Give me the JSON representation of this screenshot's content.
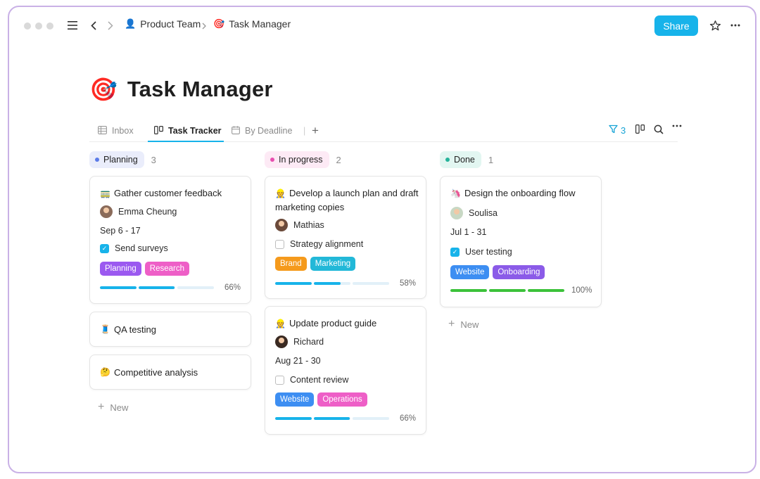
{
  "breadcrumb": [
    {
      "label": "Product Team",
      "emoji": "👤"
    },
    {
      "label": "Task Manager",
      "emoji": "🎯"
    }
  ],
  "toolbar": {
    "share_label": "Share"
  },
  "page": {
    "title": "Task Manager",
    "emoji": "🎯"
  },
  "tabs": [
    {
      "label": "Inbox",
      "icon": "table-icon"
    },
    {
      "label": "Task Tracker",
      "icon": "board-icon"
    },
    {
      "label": "By Deadline",
      "icon": "calendar-icon"
    }
  ],
  "view_tools": {
    "filter_count": "3"
  },
  "colors": {
    "accent": "#17b3ea",
    "planning_bg": "#eaedfb",
    "planning_dot": "#5b7be8",
    "in_progress_bg": "#fdeaf5",
    "in_progress_dot": "#e84fb0",
    "done_bg": "#e2f6f1",
    "done_dot": "#24b39a",
    "tag_planning": "#9b59f0",
    "tag_research": "#ee5fc7",
    "tag_brand": "#f59a1c",
    "tag_marketing": "#22b8d8",
    "tag_website": "#3d8ef2",
    "tag_operations": "#ee5fc7",
    "tag_onboarding": "#8b5be8",
    "progress_blue": "#17b3ea",
    "progress_green": "#3cc23a"
  },
  "columns": {
    "planning": {
      "label": "Planning",
      "count": "3",
      "card": {
        "title": "Gather customer feedback",
        "emoji": "🚃",
        "assignee": "Emma Cheung",
        "date": "Sep 6 - 17",
        "checklist": "Send surveys",
        "checked": true,
        "tags": [
          "Planning",
          "Research"
        ],
        "progress_label": "66%",
        "progress": 0.66
      },
      "mini_cards": [
        {
          "title": "QA testing",
          "emoji": "🧵"
        },
        {
          "title": "Competitive analysis",
          "emoji": "🤔"
        }
      ],
      "new_label": "New"
    },
    "in_progress": {
      "label": "In progress",
      "count": "2",
      "cards": [
        {
          "title": "Develop a launch plan and draft marketing copies",
          "emoji": "👷",
          "assignee": "Mathias",
          "checklist": "Strategy alignment",
          "checked": false,
          "tags": [
            "Brand",
            "Marketing"
          ],
          "progress_label": "58%",
          "progress": 0.58
        },
        {
          "title": "Update product guide",
          "emoji": "👷",
          "assignee": "Richard",
          "date": "Aug 21 - 30",
          "checklist": "Content review",
          "checked": false,
          "tags": [
            "Website",
            "Operations"
          ],
          "progress_label": "66%",
          "progress": 0.66
        }
      ]
    },
    "done": {
      "label": "Done",
      "count": "1",
      "card": {
        "title": "Design the onboarding flow",
        "emoji": "🦄",
        "assignee": "Soulisa",
        "date": "Jul 1 - 31",
        "checklist": "User testing",
        "checked": true,
        "tags": [
          "Website",
          "Onboarding"
        ],
        "progress_label": "100%",
        "progress": 1.0
      },
      "new_label": "New"
    }
  }
}
